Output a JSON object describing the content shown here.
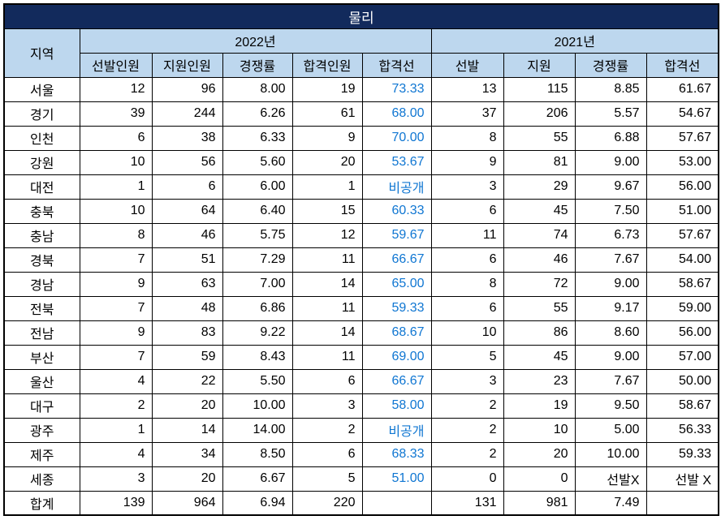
{
  "title": "물리",
  "colors": {
    "title_bg": "#122A5C",
    "title_text": "#FFFFFF",
    "header_bg": "#BDD7EE",
    "cutoff_blue": "#0F76D2",
    "border": "#000000"
  },
  "header": {
    "region": "지역",
    "year_2022": "2022년",
    "year_2021": "2021년",
    "cols_2022": [
      "선발인원",
      "지원인원",
      "경쟁률",
      "합격인원",
      "합격선"
    ],
    "cols_2021": [
      "선발",
      "지원",
      "경쟁률",
      "합격선"
    ]
  },
  "chart_data": {
    "type": "table",
    "title": "물리",
    "column_groups": [
      {
        "label": "지역",
        "span": 1
      },
      {
        "label": "2022년",
        "span": 5
      },
      {
        "label": "2021년",
        "span": 4
      }
    ],
    "columns": [
      "지역",
      "2022년 선발인원",
      "2022년 지원인원",
      "2022년 경쟁률",
      "2022년 합격인원",
      "2022년 합격선",
      "2021년 선발",
      "2021년 지원",
      "2021년 경쟁률",
      "2021년 합격선"
    ],
    "rows": [
      [
        "서울",
        "12",
        "96",
        "8.00",
        "19",
        "73.33",
        "13",
        "115",
        "8.85",
        "61.67"
      ],
      [
        "경기",
        "39",
        "244",
        "6.26",
        "61",
        "68.00",
        "37",
        "206",
        "5.57",
        "54.67"
      ],
      [
        "인천",
        "6",
        "38",
        "6.33",
        "9",
        "70.00",
        "8",
        "55",
        "6.88",
        "57.67"
      ],
      [
        "강원",
        "10",
        "56",
        "5.60",
        "20",
        "53.67",
        "9",
        "81",
        "9.00",
        "53.00"
      ],
      [
        "대전",
        "1",
        "6",
        "6.00",
        "1",
        "비공개",
        "3",
        "29",
        "9.67",
        "56.00"
      ],
      [
        "충북",
        "10",
        "64",
        "6.40",
        "15",
        "60.33",
        "6",
        "45",
        "7.50",
        "51.00"
      ],
      [
        "충남",
        "8",
        "46",
        "5.75",
        "12",
        "59.67",
        "11",
        "74",
        "6.73",
        "57.67"
      ],
      [
        "경북",
        "7",
        "51",
        "7.29",
        "11",
        "66.67",
        "6",
        "46",
        "7.67",
        "54.00"
      ],
      [
        "경남",
        "9",
        "63",
        "7.00",
        "14",
        "65.00",
        "8",
        "72",
        "9.00",
        "58.67"
      ],
      [
        "전북",
        "7",
        "48",
        "6.86",
        "11",
        "59.33",
        "6",
        "55",
        "9.17",
        "59.00"
      ],
      [
        "전남",
        "9",
        "83",
        "9.22",
        "14",
        "68.67",
        "10",
        "86",
        "8.60",
        "56.00"
      ],
      [
        "부산",
        "7",
        "59",
        "8.43",
        "11",
        "69.00",
        "5",
        "45",
        "9.00",
        "57.00"
      ],
      [
        "울산",
        "4",
        "22",
        "5.50",
        "6",
        "66.67",
        "3",
        "23",
        "7.67",
        "50.00"
      ],
      [
        "대구",
        "2",
        "20",
        "10.00",
        "3",
        "58.00",
        "2",
        "19",
        "9.50",
        "58.67"
      ],
      [
        "광주",
        "1",
        "14",
        "14.00",
        "2",
        "비공개",
        "2",
        "10",
        "5.00",
        "56.33"
      ],
      [
        "제주",
        "4",
        "34",
        "8.50",
        "6",
        "68.33",
        "2",
        "20",
        "10.00",
        "59.33"
      ],
      [
        "세종",
        "3",
        "20",
        "6.67",
        "5",
        "51.00",
        "0",
        "0",
        "선발X",
        "선발 X"
      ],
      [
        "합계",
        "139",
        "964",
        "6.94",
        "220",
        "",
        "131",
        "981",
        "7.49",
        ""
      ]
    ]
  }
}
